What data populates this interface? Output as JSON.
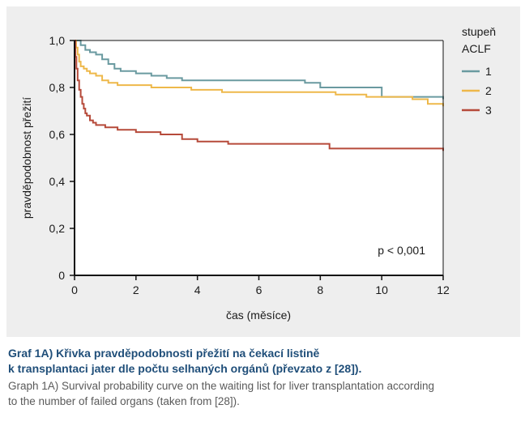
{
  "chart_data": {
    "type": "line",
    "xlabel": "čas (měsíce)",
    "ylabel": "pravděpodobnost přežití",
    "xlim": [
      0,
      12
    ],
    "ylim": [
      0,
      1
    ],
    "xticks": [
      0,
      2,
      4,
      6,
      8,
      10,
      12
    ],
    "yticks": [
      0,
      0.2,
      0.4,
      0.6,
      0.8,
      1.0
    ],
    "xtick_labels": [
      "0",
      "2",
      "4",
      "6",
      "8",
      "10",
      "12"
    ],
    "ytick_labels": [
      "0",
      "0,2",
      "0,4",
      "0,6",
      "0,8",
      "1,0"
    ],
    "grid": false,
    "step": true,
    "legend_title": "stupeň ACLF",
    "legend_title_lines": [
      "stupeň",
      "ACLF"
    ],
    "legend_position": "top-right-outside",
    "annotation": "p < 0,001",
    "series": [
      {
        "name": "1",
        "color": "#6a9aa0",
        "x": [
          0,
          0.2,
          0.35,
          0.5,
          0.7,
          0.9,
          1.1,
          1.3,
          1.5,
          2.0,
          2.5,
          3.0,
          3.5,
          5.5,
          7.5,
          8.0,
          10.0,
          12.0
        ],
        "y": [
          1.0,
          0.98,
          0.96,
          0.95,
          0.94,
          0.92,
          0.9,
          0.88,
          0.87,
          0.86,
          0.85,
          0.84,
          0.83,
          0.83,
          0.82,
          0.8,
          0.76,
          0.75
        ]
      },
      {
        "name": "2",
        "color": "#eeb84a",
        "x": [
          0,
          0.05,
          0.1,
          0.15,
          0.2,
          0.3,
          0.4,
          0.5,
          0.7,
          0.9,
          1.1,
          1.4,
          2.0,
          2.5,
          3.0,
          3.8,
          4.8,
          6.0,
          7.5,
          8.5,
          9.5,
          11.0,
          11.5,
          12.0
        ],
        "y": [
          1.0,
          0.97,
          0.94,
          0.91,
          0.89,
          0.88,
          0.87,
          0.86,
          0.85,
          0.83,
          0.82,
          0.81,
          0.81,
          0.8,
          0.8,
          0.79,
          0.78,
          0.78,
          0.78,
          0.77,
          0.76,
          0.75,
          0.73,
          0.72
        ]
      },
      {
        "name": "3",
        "color": "#b64a3a",
        "x": [
          0,
          0.03,
          0.06,
          0.1,
          0.15,
          0.2,
          0.25,
          0.3,
          0.35,
          0.4,
          0.5,
          0.6,
          0.7,
          0.8,
          1.0,
          1.4,
          2.0,
          2.8,
          3.5,
          4.0,
          4.5,
          5.0,
          6.0,
          8.0,
          8.3,
          9.0,
          11.0,
          12.0
        ],
        "y": [
          1.0,
          0.93,
          0.88,
          0.83,
          0.79,
          0.76,
          0.73,
          0.71,
          0.69,
          0.68,
          0.66,
          0.65,
          0.64,
          0.64,
          0.63,
          0.62,
          0.61,
          0.6,
          0.58,
          0.57,
          0.57,
          0.56,
          0.56,
          0.56,
          0.54,
          0.54,
          0.54,
          0.53
        ]
      }
    ]
  },
  "caption": {
    "title": "Graf 1A) Křivka pravděpodobnosti přežití na čekací listině",
    "title_line2": "k transplantaci jater dle počtu selhaných orgánů (převzato z [28]).",
    "subtitle": "Graph 1A) Survival probability curve on the waiting list for liver transplantation according",
    "subtitle_line2": "to the number of failed organs (taken from [28])."
  }
}
